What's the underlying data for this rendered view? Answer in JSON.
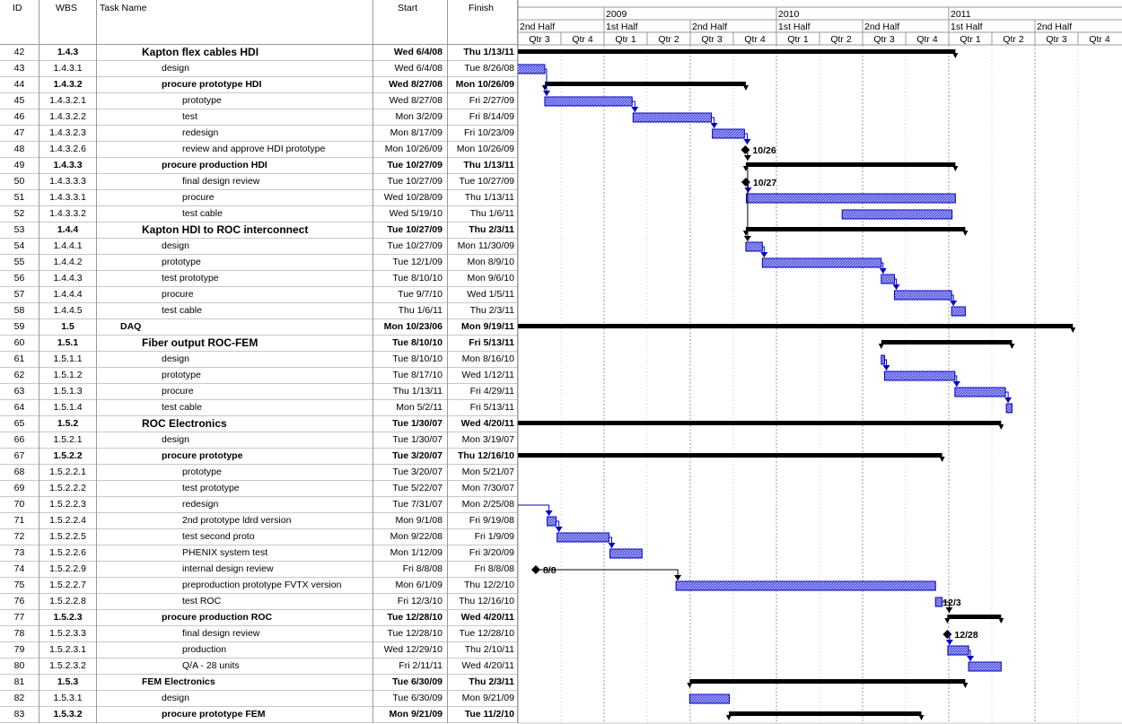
{
  "table": {
    "headers": {
      "id": "ID",
      "wbs": "WBS",
      "name": "Task Name",
      "start": "Start",
      "finish": "Finish"
    },
    "rows": [
      {
        "id": "42",
        "wbs": "1.4.3",
        "name": "Kapton flex cables HDI",
        "start": "Wed 6/4/08",
        "finish": "Thu 1/13/11",
        "level": 2,
        "summary": true,
        "big": true
      },
      {
        "id": "43",
        "wbs": "1.4.3.1",
        "name": "design",
        "start": "Wed 6/4/08",
        "finish": "Tue 8/26/08",
        "level": 3
      },
      {
        "id": "44",
        "wbs": "1.4.3.2",
        "name": "procure prototype HDI",
        "start": "Wed 8/27/08",
        "finish": "Mon 10/26/09",
        "level": 3,
        "summary": true
      },
      {
        "id": "45",
        "wbs": "1.4.3.2.1",
        "name": "prototype",
        "start": "Wed 8/27/08",
        "finish": "Fri 2/27/09",
        "level": 4
      },
      {
        "id": "46",
        "wbs": "1.4.3.2.2",
        "name": "test",
        "start": "Mon 3/2/09",
        "finish": "Fri 8/14/09",
        "level": 4
      },
      {
        "id": "47",
        "wbs": "1.4.3.2.3",
        "name": "redesign",
        "start": "Mon 8/17/09",
        "finish": "Fri 10/23/09",
        "level": 4
      },
      {
        "id": "48",
        "wbs": "1.4.3.2.6",
        "name": "review and approve HDI prototype",
        "start": "Mon 10/26/09",
        "finish": "Mon 10/26/09",
        "level": 4
      },
      {
        "id": "49",
        "wbs": "1.4.3.3",
        "name": "procure production HDI",
        "start": "Tue 10/27/09",
        "finish": "Thu 1/13/11",
        "level": 3,
        "summary": true
      },
      {
        "id": "50",
        "wbs": "1.4.3.3.3",
        "name": "final design review",
        "start": "Tue 10/27/09",
        "finish": "Tue 10/27/09",
        "level": 4
      },
      {
        "id": "51",
        "wbs": "1.4.3.3.1",
        "name": "procure",
        "start": "Wed 10/28/09",
        "finish": "Thu 1/13/11",
        "level": 4
      },
      {
        "id": "52",
        "wbs": "1.4.3.3.2",
        "name": "test cable",
        "start": "Wed 5/19/10",
        "finish": "Thu 1/6/11",
        "level": 4
      },
      {
        "id": "53",
        "wbs": "1.4.4",
        "name": "Kapton HDI to ROC interconnect",
        "start": "Tue 10/27/09",
        "finish": "Thu 2/3/11",
        "level": 2,
        "summary": true,
        "big": true
      },
      {
        "id": "54",
        "wbs": "1.4.4.1",
        "name": "design",
        "start": "Tue 10/27/09",
        "finish": "Mon 11/30/09",
        "level": 3
      },
      {
        "id": "55",
        "wbs": "1.4.4.2",
        "name": "prototype",
        "start": "Tue 12/1/09",
        "finish": "Mon 8/9/10",
        "level": 3
      },
      {
        "id": "56",
        "wbs": "1.4.4.3",
        "name": "test prototype",
        "start": "Tue 8/10/10",
        "finish": "Mon 9/6/10",
        "level": 3
      },
      {
        "id": "57",
        "wbs": "1.4.4.4",
        "name": "procure",
        "start": "Tue 9/7/10",
        "finish": "Wed 1/5/11",
        "level": 3
      },
      {
        "id": "58",
        "wbs": "1.4.4.5",
        "name": "test cable",
        "start": "Thu 1/6/11",
        "finish": "Thu 2/3/11",
        "level": 3
      },
      {
        "id": "59",
        "wbs": "1.5",
        "name": "DAQ",
        "start": "Mon 10/23/06",
        "finish": "Mon 9/19/11",
        "level": 1,
        "summary": true
      },
      {
        "id": "60",
        "wbs": "1.5.1",
        "name": "Fiber output ROC-FEM",
        "start": "Tue 8/10/10",
        "finish": "Fri 5/13/11",
        "level": 2,
        "summary": true,
        "big": true
      },
      {
        "id": "61",
        "wbs": "1.5.1.1",
        "name": "design",
        "start": "Tue 8/10/10",
        "finish": "Mon 8/16/10",
        "level": 3
      },
      {
        "id": "62",
        "wbs": "1.5.1.2",
        "name": "prototype",
        "start": "Tue 8/17/10",
        "finish": "Wed 1/12/11",
        "level": 3
      },
      {
        "id": "63",
        "wbs": "1.5.1.3",
        "name": "procure",
        "start": "Thu 1/13/11",
        "finish": "Fri 4/29/11",
        "level": 3
      },
      {
        "id": "64",
        "wbs": "1.5.1.4",
        "name": "test cable",
        "start": "Mon 5/2/11",
        "finish": "Fri 5/13/11",
        "level": 3
      },
      {
        "id": "65",
        "wbs": "1.5.2",
        "name": "ROC Electronics",
        "start": "Tue 1/30/07",
        "finish": "Wed 4/20/11",
        "level": 2,
        "summary": true,
        "big": true
      },
      {
        "id": "66",
        "wbs": "1.5.2.1",
        "name": "design",
        "start": "Tue 1/30/07",
        "finish": "Mon 3/19/07",
        "level": 3
      },
      {
        "id": "67",
        "wbs": "1.5.2.2",
        "name": "procure prototype",
        "start": "Tue 3/20/07",
        "finish": "Thu 12/16/10",
        "level": 3,
        "summary": true
      },
      {
        "id": "68",
        "wbs": "1.5.2.2.1",
        "name": "prototype",
        "start": "Tue 3/20/07",
        "finish": "Mon 5/21/07",
        "level": 4
      },
      {
        "id": "69",
        "wbs": "1.5.2.2.2",
        "name": "test prototype",
        "start": "Tue 5/22/07",
        "finish": "Mon 7/30/07",
        "level": 4
      },
      {
        "id": "70",
        "wbs": "1.5.2.2.3",
        "name": "redesign",
        "start": "Tue 7/31/07",
        "finish": "Mon 2/25/08",
        "level": 4
      },
      {
        "id": "71",
        "wbs": "1.5.2.2.4",
        "name": "2nd prototype ldrd version",
        "start": "Mon 9/1/08",
        "finish": "Fri 9/19/08",
        "level": 4
      },
      {
        "id": "72",
        "wbs": "1.5.2.2.5",
        "name": "test second proto",
        "start": "Mon 9/22/08",
        "finish": "Fri 1/9/09",
        "level": 4
      },
      {
        "id": "73",
        "wbs": "1.5.2.2.6",
        "name": "PHENIX system test",
        "start": "Mon 1/12/09",
        "finish": "Fri 3/20/09",
        "level": 4
      },
      {
        "id": "74",
        "wbs": "1.5.2.2.9",
        "name": "internal design review",
        "start": "Fri 8/8/08",
        "finish": "Fri 8/8/08",
        "level": 4
      },
      {
        "id": "75",
        "wbs": "1.5.2.2.7",
        "name": "preproduction prototype FVTX version",
        "start": "Mon 6/1/09",
        "finish": "Thu 12/2/10",
        "level": 4
      },
      {
        "id": "76",
        "wbs": "1.5.2.2.8",
        "name": "test ROC",
        "start": "Fri 12/3/10",
        "finish": "Thu 12/16/10",
        "level": 4
      },
      {
        "id": "77",
        "wbs": "1.5.2.3",
        "name": "procure production ROC",
        "start": "Tue 12/28/10",
        "finish": "Wed 4/20/11",
        "level": 3,
        "summary": true
      },
      {
        "id": "78",
        "wbs": "1.5.2.3.3",
        "name": "final design review",
        "start": "Tue 12/28/10",
        "finish": "Tue 12/28/10",
        "level": 4
      },
      {
        "id": "79",
        "wbs": "1.5.2.3.1",
        "name": "production",
        "start": "Wed 12/29/10",
        "finish": "Thu 2/10/11",
        "level": 4
      },
      {
        "id": "80",
        "wbs": "1.5.2.3.2",
        "name": "Q/A - 28 units",
        "start": "Fri 2/11/11",
        "finish": "Wed 4/20/11",
        "level": 4
      },
      {
        "id": "81",
        "wbs": "1.5.3",
        "name": "FEM Electronics",
        "start": "Tue 6/30/09",
        "finish": "Thu 2/3/11",
        "level": 2,
        "summary": true
      },
      {
        "id": "82",
        "wbs": "1.5.3.1",
        "name": "design",
        "start": "Tue 6/30/09",
        "finish": "Mon 9/21/09",
        "level": 3
      },
      {
        "id": "83",
        "wbs": "1.5.3.2",
        "name": "procure prototype FEM",
        "start": "Mon 9/21/09",
        "finish": "Tue 11/2/10",
        "level": 3,
        "summary": true
      }
    ]
  },
  "timescale": {
    "years": [
      "2009",
      "2010",
      "2011"
    ],
    "halves": [
      "2nd Half",
      "1st Half",
      "2nd Half",
      "1st Half",
      "2nd Half",
      "1st Half",
      "2nd Half"
    ],
    "quarters": [
      "Qtr 3",
      "Qtr 4",
      "Qtr 1",
      "Qtr 2",
      "Qtr 3",
      "Qtr 4",
      "Qtr 1",
      "Qtr 2",
      "Qtr 3",
      "Qtr 4",
      "Qtr 1",
      "Qtr 2",
      "Qtr 3",
      "Qtr 4"
    ]
  },
  "milestone_labels": [
    {
      "row": "48",
      "text": "10/26"
    },
    {
      "row": "50",
      "text": "10/27"
    },
    {
      "row": "74",
      "text": "8/8"
    },
    {
      "row": "76",
      "text": "12/3"
    },
    {
      "row": "78",
      "text": "12/28"
    }
  ],
  "colors": {
    "task_bar": "#5050e0",
    "task_border": "#0000c0",
    "summary_bar": "#000000",
    "link": "#0000cc",
    "grid": "#9a9a9a"
  }
}
